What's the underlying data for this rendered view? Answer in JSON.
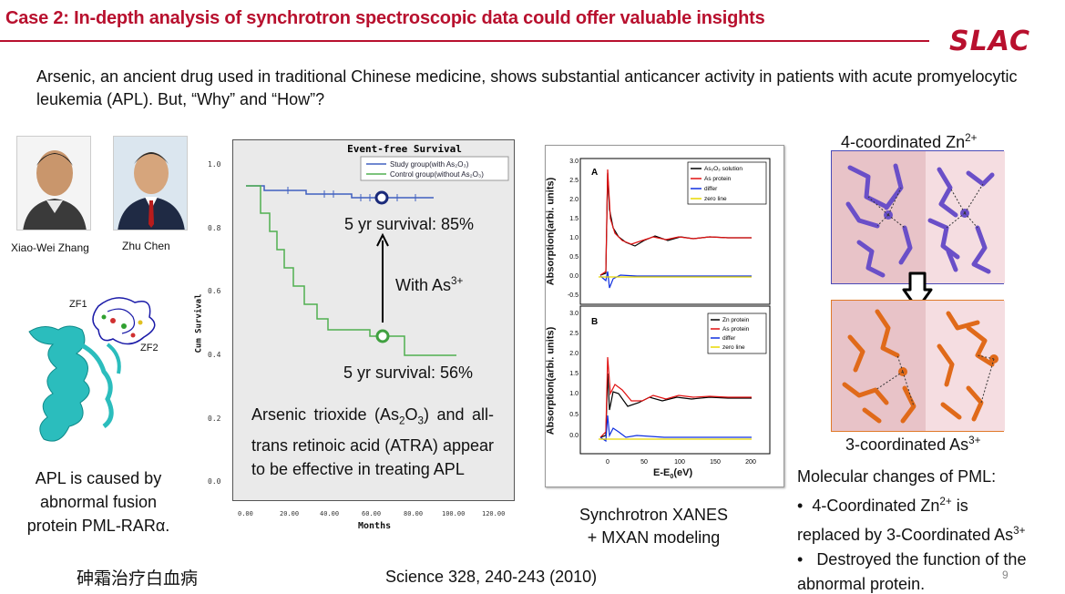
{
  "header": {
    "title": "Case 2: In-depth analysis of synchrotron spectroscopic data could offer valuable insights",
    "logo": "SLAC"
  },
  "intro": {
    "text": "Arsenic, an ancient drug used in traditional Chinese medicine, shows substantial anticancer activity in patients with acute promyelocytic leukemia (APL). But, “Why” and “How”?"
  },
  "people": [
    {
      "name": "Xiao-Wei Zhang"
    },
    {
      "name": "Zhu Chen"
    }
  ],
  "protein": {
    "label_zf1": "ZF1",
    "label_zf2": "ZF2",
    "caption": "APL is caused by abnormal fusion protein PML-RARα."
  },
  "footer": {
    "chinese": "砷霜治疗白血病",
    "citation": "Science 328, 240-243 (2010)",
    "page": "9"
  },
  "survival_chart": {
    "title": "Event-free Survival",
    "xlabel": "Months",
    "ylabel": "Cum Survival",
    "legend_study": "Study group(with As₂O₃)",
    "legend_control": "Control group(without As₂O₃)",
    "label_top": "5 yr survival: 85%",
    "label_bottom": "5 yr survival: 56%",
    "label_with": "With As",
    "label_with_sup": "3+",
    "yticks": [
      "1.0",
      "0.8",
      "0.6",
      "0.4",
      "0.2",
      "0.0"
    ],
    "xticks": [
      "0.00",
      "20.00",
      "40.00",
      "60.00",
      "80.00",
      "100.00",
      "120.00"
    ]
  },
  "arsenic_text": {
    "part1": "Arsenic trioxide (As",
    "sub1": "2",
    "part2": "O",
    "sub2": "3",
    "part3": ") and all-trans retinoic acid (ATRA) appear to be effective in treating APL"
  },
  "xanes": {
    "ylabel": "Absorption(arbi. units)",
    "xlabel": "E-E",
    "xlabel_sub": "0",
    "xlabel_unit": "(eV)",
    "panel_a": "A",
    "panel_b": "B",
    "legend_a": [
      "As₂O₃ solution",
      "As protein",
      "differ",
      "zero line"
    ],
    "legend_b": [
      "Zn protein",
      "As protein",
      "differ",
      "zero line"
    ],
    "yticks": [
      "3.0",
      "2.5",
      "2.0",
      "1.5",
      "1.0",
      "0.5",
      "0.0",
      "-0.5"
    ],
    "yticks_b": [
      "3.0",
      "2.5",
      "2.0",
      "1.5",
      "1.0",
      "0.5",
      "0.0"
    ],
    "xticks": [
      "0",
      "50",
      "100",
      "150",
      "200"
    ],
    "caption_line1": "Synchrotron XANES",
    "caption_line2": "+ MXAN modeling",
    "colors": {
      "black": "#000000",
      "red": "#e01010",
      "blue": "#1030e0",
      "yellow": "#e8d800"
    }
  },
  "molecules": {
    "top_title": "4-coordinated Zn",
    "top_sup": "2+",
    "bottom_title": "3-coordinated As",
    "bottom_sup": "3+",
    "colors": {
      "zn": "#6a4fc8",
      "as": "#e06a1a"
    }
  },
  "changes": {
    "heading": "Molecular changes of PML:",
    "b1_a": "4-Coordinated  Zn",
    "b1_sup": "2+",
    "b1_b": " is",
    "b1_c": "replaced by  3-Coordinated As",
    "b1_sup2": "3+",
    "b2": "Destroyed the function of the abnormal protein."
  }
}
